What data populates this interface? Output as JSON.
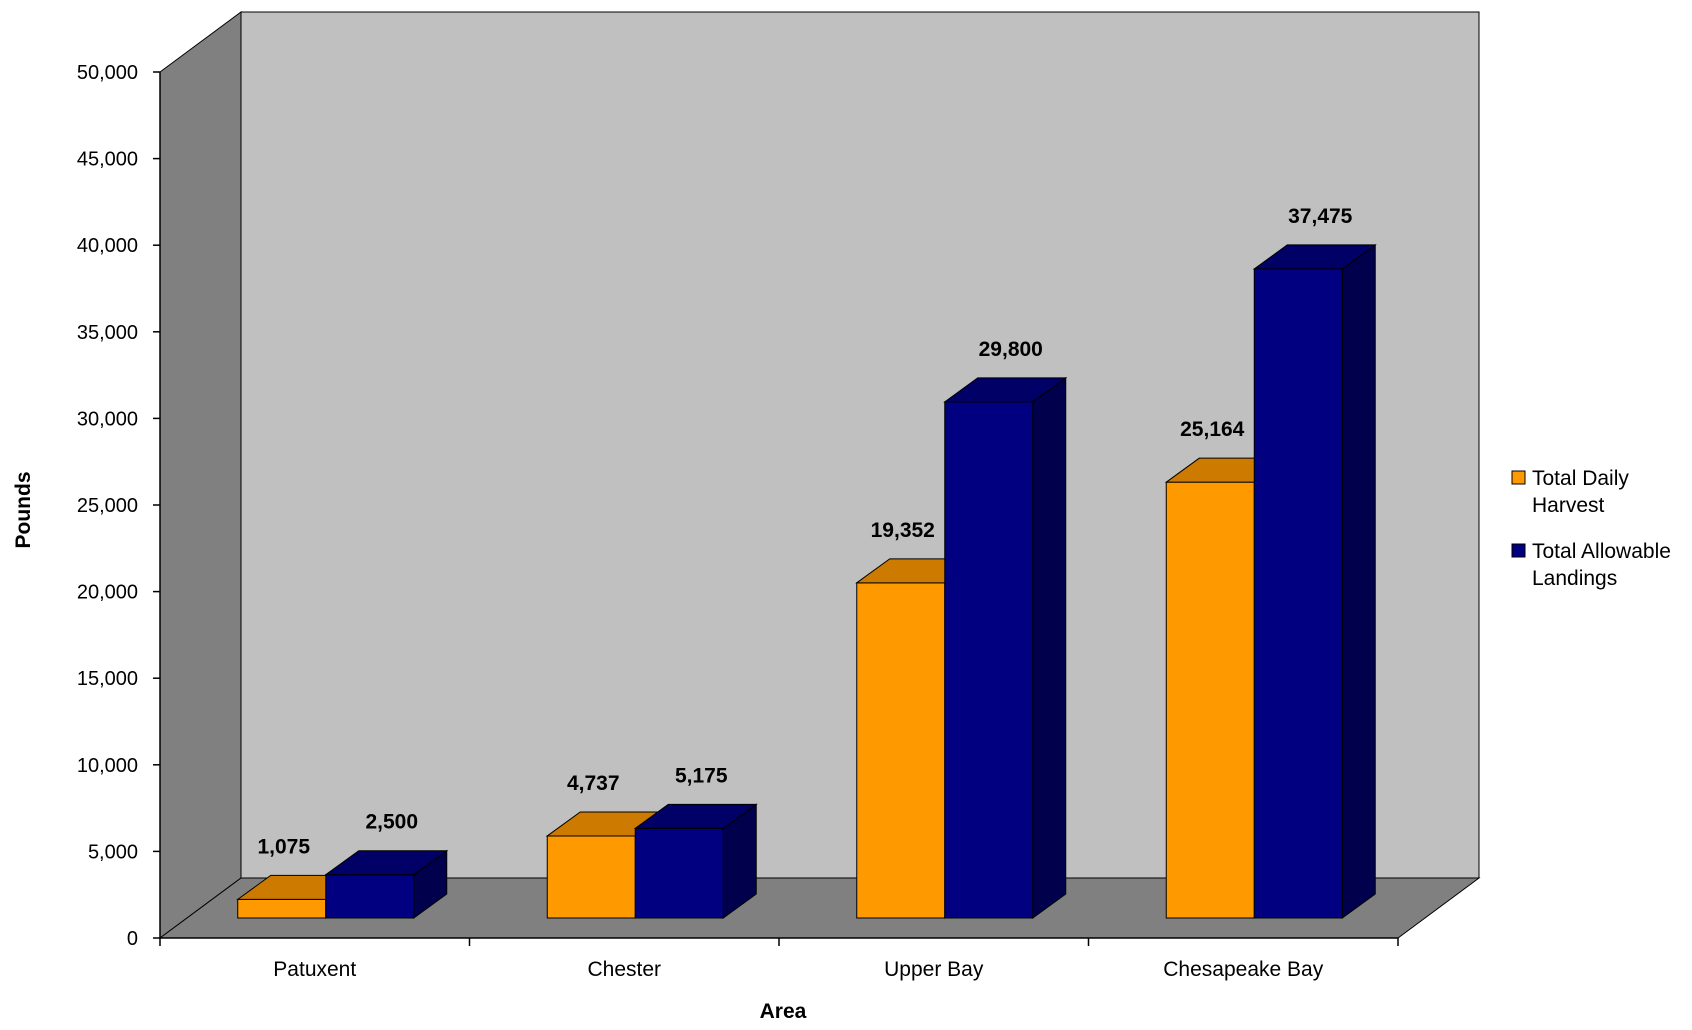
{
  "chart_data": {
    "type": "bar",
    "title": "",
    "xlabel": "Area",
    "ylabel": "Pounds",
    "categories": [
      "Patuxent",
      "Chester",
      "Upper Bay",
      "Chesapeake Bay"
    ],
    "series": [
      {
        "name": "Total Daily Harvest",
        "values": [
          1075,
          4737,
          19352,
          25164
        ],
        "labels": [
          "1,075",
          "4,737",
          "19,352",
          "25,164"
        ],
        "color": "#FF9900",
        "top_color": "#CC7A00",
        "side_color": "#B36B00"
      },
      {
        "name": "Total Allowable Landings",
        "values": [
          2500,
          5175,
          29800,
          37475
        ],
        "labels": [
          "2,500",
          "5,175",
          "29,800",
          "37,475"
        ],
        "color": "#000080",
        "top_color": "#000066",
        "side_color": "#00004D"
      }
    ],
    "ylim": [
      0,
      50000
    ],
    "yticks": [
      0,
      5000,
      10000,
      15000,
      20000,
      25000,
      30000,
      35000,
      40000,
      45000,
      50000
    ],
    "ytick_labels": [
      "0",
      "5,000",
      "10,000",
      "15,000",
      "20,000",
      "25,000",
      "30,000",
      "35,000",
      "40,000",
      "45,000",
      "50,000"
    ],
    "legend": {
      "position": "right",
      "entries": [
        [
          "Total Daily",
          "Harvest"
        ],
        [
          "Total Allowable",
          "Landings"
        ]
      ]
    },
    "style": {
      "wall_color": "#C0C0C0",
      "side_wall_color": "#808080",
      "floor_color": "#808080"
    },
    "grid": false
  }
}
